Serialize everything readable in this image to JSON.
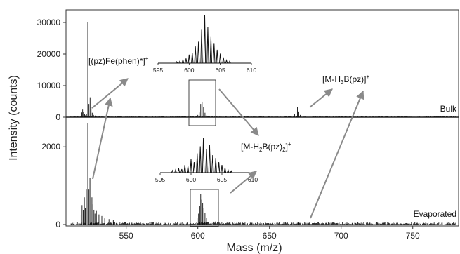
{
  "chart_data": {
    "type": "line",
    "xlabel": "Mass (m/z)",
    "ylabel": "Intensity (counts)",
    "xlim": [
      508,
      782
    ],
    "x_ticks": [
      550,
      600,
      650,
      700,
      750
    ],
    "grid": false,
    "series": [
      {
        "name": "Bulk",
        "ylim": [
          0,
          34000
        ],
        "y_ticks": [
          0,
          10000,
          20000,
          30000
        ],
        "peaks": [
          {
            "x": 519.0,
            "y": 1500
          },
          {
            "x": 519.6,
            "y": 2400
          },
          {
            "x": 520.2,
            "y": 1600
          },
          {
            "x": 521.0,
            "y": 900
          },
          {
            "x": 521.6,
            "y": 600
          },
          {
            "x": 522.3,
            "y": 1100
          },
          {
            "x": 523.2,
            "y": 30000
          },
          {
            "x": 524.0,
            "y": 4200
          },
          {
            "x": 524.8,
            "y": 6300
          },
          {
            "x": 525.5,
            "y": 3000
          },
          {
            "x": 526.3,
            "y": 1400
          },
          {
            "x": 527.2,
            "y": 700
          },
          {
            "x": 528.3,
            "y": 500
          },
          {
            "x": 529.5,
            "y": 350
          },
          {
            "x": 531.0,
            "y": 300
          },
          {
            "x": 540.0,
            "y": 250
          },
          {
            "x": 545.0,
            "y": 300
          },
          {
            "x": 600.0,
            "y": 700
          },
          {
            "x": 601.0,
            "y": 1500
          },
          {
            "x": 602.0,
            "y": 4200
          },
          {
            "x": 603.0,
            "y": 4900
          },
          {
            "x": 604.0,
            "y": 3200
          },
          {
            "x": 605.0,
            "y": 1400
          },
          {
            "x": 606.0,
            "y": 500
          },
          {
            "x": 667.5,
            "y": 900
          },
          {
            "x": 668.5,
            "y": 1500
          },
          {
            "x": 669.5,
            "y": 3100
          },
          {
            "x": 670.5,
            "y": 1800
          },
          {
            "x": 671.5,
            "y": 700
          }
        ],
        "label": "Bulk"
      },
      {
        "name": "Evaporated",
        "ylim": [
          0,
          2600
        ],
        "y_ticks": [
          0,
          2000
        ],
        "peaks": [
          {
            "x": 518.5,
            "y": 250
          },
          {
            "x": 519.2,
            "y": 500
          },
          {
            "x": 520.0,
            "y": 380
          },
          {
            "x": 520.8,
            "y": 700
          },
          {
            "x": 521.5,
            "y": 420
          },
          {
            "x": 522.2,
            "y": 900
          },
          {
            "x": 523.2,
            "y": 2600
          },
          {
            "x": 524.0,
            "y": 900
          },
          {
            "x": 524.7,
            "y": 1200
          },
          {
            "x": 525.4,
            "y": 1350
          },
          {
            "x": 526.1,
            "y": 700
          },
          {
            "x": 526.8,
            "y": 520
          },
          {
            "x": 527.5,
            "y": 380
          },
          {
            "x": 528.2,
            "y": 280
          },
          {
            "x": 529.2,
            "y": 350
          },
          {
            "x": 531.0,
            "y": 260
          },
          {
            "x": 533.0,
            "y": 220
          },
          {
            "x": 535.0,
            "y": 160
          },
          {
            "x": 538.0,
            "y": 140
          },
          {
            "x": 541.0,
            "y": 110
          },
          {
            "x": 599.5,
            "y": 160
          },
          {
            "x": 600.5,
            "y": 280
          },
          {
            "x": 601.3,
            "y": 480
          },
          {
            "x": 602.0,
            "y": 780
          },
          {
            "x": 602.7,
            "y": 640
          },
          {
            "x": 603.4,
            "y": 560
          },
          {
            "x": 604.2,
            "y": 420
          },
          {
            "x": 605.0,
            "y": 300
          },
          {
            "x": 606.0,
            "y": 180
          },
          {
            "x": 670.5,
            "y": 70
          },
          {
            "x": 712.0,
            "y": 40
          }
        ],
        "label": "Evaporated"
      }
    ],
    "insets": [
      {
        "of": "Bulk",
        "xlim": [
          595,
          610
        ],
        "x_ticks": [
          595,
          600,
          605,
          610
        ],
        "peaks": [
          {
            "x": 598.0,
            "y": 0.03
          },
          {
            "x": 598.5,
            "y": 0.04
          },
          {
            "x": 599.0,
            "y": 0.08
          },
          {
            "x": 599.5,
            "y": 0.1
          },
          {
            "x": 600.0,
            "y": 0.18
          },
          {
            "x": 600.5,
            "y": 0.22
          },
          {
            "x": 601.0,
            "y": 0.35
          },
          {
            "x": 601.5,
            "y": 0.45
          },
          {
            "x": 602.0,
            "y": 0.7
          },
          {
            "x": 602.5,
            "y": 1.0
          },
          {
            "x": 603.0,
            "y": 0.75
          },
          {
            "x": 603.5,
            "y": 0.55
          },
          {
            "x": 604.0,
            "y": 0.42
          },
          {
            "x": 604.5,
            "y": 0.28
          },
          {
            "x": 605.0,
            "y": 0.2
          },
          {
            "x": 605.5,
            "y": 0.12
          },
          {
            "x": 606.0,
            "y": 0.06
          },
          {
            "x": 606.5,
            "y": 0.04
          }
        ]
      },
      {
        "of": "Evaporated",
        "xlim": [
          595,
          610
        ],
        "x_ticks": [
          595,
          600,
          605,
          610
        ],
        "peaks": [
          {
            "x": 597.0,
            "y": 0.06
          },
          {
            "x": 597.5,
            "y": 0.08
          },
          {
            "x": 598.0,
            "y": 0.12
          },
          {
            "x": 598.5,
            "y": 0.1
          },
          {
            "x": 599.0,
            "y": 0.22
          },
          {
            "x": 599.5,
            "y": 0.18
          },
          {
            "x": 600.0,
            "y": 0.38
          },
          {
            "x": 600.5,
            "y": 0.3
          },
          {
            "x": 601.0,
            "y": 0.55
          },
          {
            "x": 601.5,
            "y": 0.75
          },
          {
            "x": 602.0,
            "y": 1.0
          },
          {
            "x": 602.5,
            "y": 0.68
          },
          {
            "x": 603.0,
            "y": 0.8
          },
          {
            "x": 603.5,
            "y": 0.5
          },
          {
            "x": 604.0,
            "y": 0.42
          },
          {
            "x": 604.5,
            "y": 0.3
          },
          {
            "x": 605.0,
            "y": 0.22
          },
          {
            "x": 605.5,
            "y": 0.14
          },
          {
            "x": 606.0,
            "y": 0.08
          },
          {
            "x": 606.5,
            "y": 0.05
          }
        ]
      }
    ],
    "annotations": [
      {
        "id": "fe",
        "prefix": "[(pz)Fe(phen)*]",
        "sup": "+"
      },
      {
        "id": "h3b",
        "prefix": "[M-H",
        "sub1": "3",
        "mid": "B(pz)]",
        "sup": "+"
      },
      {
        "id": "h2b",
        "prefix": "[M-H",
        "sub1": "2",
        "mid": "B(pz)",
        "sub2": "2",
        "end": "]",
        "sup": "+"
      }
    ]
  }
}
